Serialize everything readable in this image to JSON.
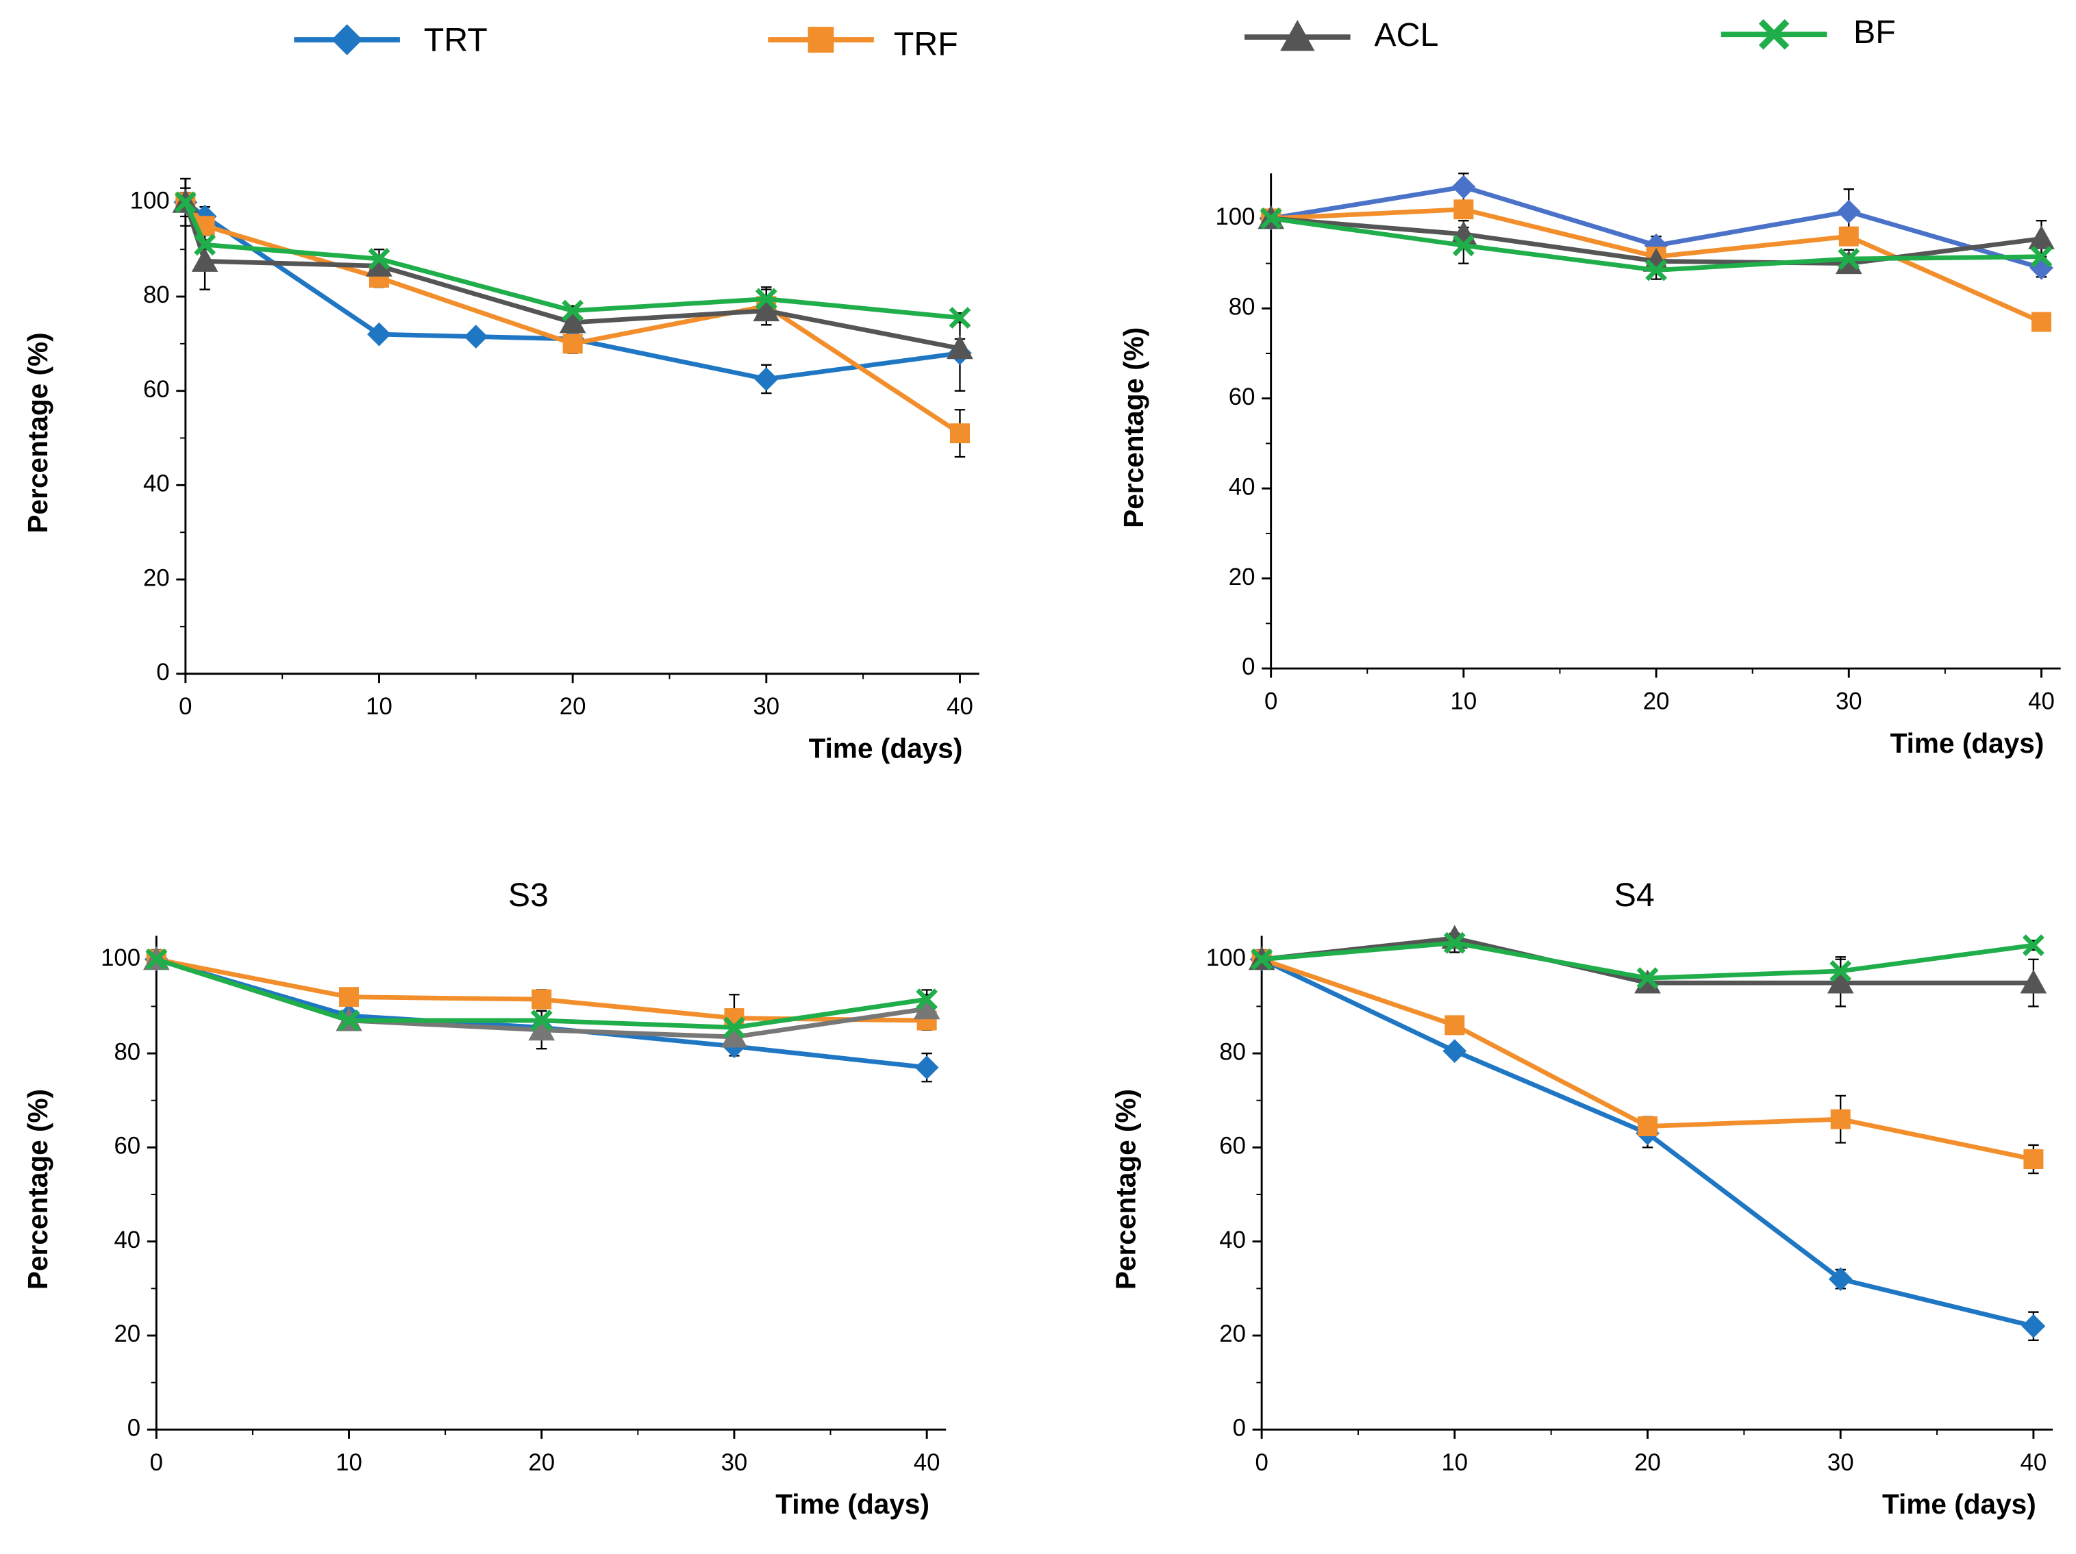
{
  "chart_data": [
    {
      "type": "line",
      "xlim": [
        0,
        41
      ],
      "ylim": [
        0,
        105
      ],
      "xticks": [
        0,
        10,
        20,
        30,
        40
      ],
      "yticks": [
        0,
        20,
        40,
        60,
        80,
        100
      ],
      "x_label": "Time (days)",
      "y_label": "Percentage (%)",
      "series": [
        {
          "name": "TRT",
          "color": "#1f77c4",
          "marker": "diamond",
          "x": [
            0,
            1,
            10,
            15,
            20,
            30,
            40
          ],
          "values": [
            100,
            97,
            72,
            71.5,
            71,
            62.5,
            68
          ],
          "errors": [
            2,
            2,
            1,
            1,
            1,
            3,
            8
          ]
        },
        {
          "name": "TRF",
          "color": "#f28e2b",
          "marker": "square",
          "x": [
            0,
            1,
            10,
            20,
            30,
            40
          ],
          "values": [
            100,
            95,
            84,
            70,
            78,
            51
          ],
          "errors": [
            3,
            2,
            2,
            2,
            4,
            5
          ]
        },
        {
          "name": "ACL",
          "color": "#555555",
          "marker": "triangle",
          "x": [
            0,
            1,
            10,
            20,
            30,
            40
          ],
          "values": [
            100,
            87.5,
            86.5,
            74.5,
            77,
            69
          ],
          "errors": [
            5,
            6,
            2,
            2,
            2,
            2
          ]
        },
        {
          "name": "BF",
          "color": "#1fae4a",
          "marker": "x",
          "x": [
            0,
            1,
            10,
            20,
            30,
            40
          ],
          "values": [
            100,
            91,
            88,
            77,
            79.5,
            75.5
          ],
          "errors": [
            2,
            1,
            2,
            1,
            2,
            1
          ]
        }
      ]
    },
    {
      "type": "line",
      "xlim": [
        0,
        41
      ],
      "ylim": [
        0,
        110
      ],
      "xticks": [
        0,
        10,
        20,
        30,
        40
      ],
      "yticks": [
        0,
        20,
        40,
        60,
        80,
        100
      ],
      "x_label": "Time (days)",
      "y_label": "Percentage (%)",
      "series": [
        {
          "color": "#4a72c8",
          "marker": "diamond",
          "x": [
            0,
            10,
            20,
            30,
            40
          ],
          "values": [
            100,
            107,
            94,
            101.5,
            89
          ],
          "errors": [
            1,
            3,
            2,
            5,
            2
          ]
        },
        {
          "color": "#f28e2b",
          "marker": "square",
          "x": [
            0,
            10,
            20,
            30,
            40
          ],
          "values": [
            100,
            102,
            91.5,
            96,
            77
          ],
          "errors": [
            1,
            2,
            2,
            2,
            1
          ]
        },
        {
          "color": "#555555",
          "marker": "triangle",
          "x": [
            0,
            10,
            20,
            30,
            40
          ],
          "values": [
            100,
            96.5,
            90.5,
            90,
            95.5
          ],
          "errors": [
            1,
            3,
            2,
            2,
            4
          ]
        },
        {
          "color": "#1fae4a",
          "marker": "x",
          "x": [
            0,
            10,
            20,
            30,
            40
          ],
          "values": [
            100,
            94,
            88.5,
            91,
            91.5
          ],
          "errors": [
            1,
            4,
            2,
            2,
            2
          ]
        }
      ]
    },
    {
      "type": "line",
      "title": "S3",
      "xlim": [
        0,
        41
      ],
      "ylim": [
        0,
        105
      ],
      "xticks": [
        0,
        10,
        20,
        30,
        40
      ],
      "yticks": [
        0,
        20,
        40,
        60,
        80,
        100
      ],
      "x_label": "Time (days)",
      "y_label": "Percentage (%)",
      "series": [
        {
          "color": "#1f77c4",
          "marker": "diamond",
          "x": [
            0,
            10,
            20,
            30,
            40
          ],
          "values": [
            100,
            88,
            85.5,
            81.5,
            77
          ],
          "errors": [
            1,
            1,
            2,
            2,
            3
          ]
        },
        {
          "color": "#f28e2b",
          "marker": "square",
          "x": [
            0,
            10,
            20,
            30,
            40
          ],
          "values": [
            100,
            92,
            91.5,
            87.5,
            87
          ],
          "errors": [
            2,
            1,
            2,
            5,
            2
          ]
        },
        {
          "color": "#777777",
          "marker": "triangle",
          "x": [
            0,
            10,
            20,
            30,
            40
          ],
          "values": [
            100,
            87,
            85,
            83.5,
            89.5
          ],
          "errors": [
            2,
            1,
            4,
            2,
            3
          ]
        },
        {
          "color": "#1fae4a",
          "marker": "x",
          "x": [
            0,
            10,
            20,
            30,
            40
          ],
          "values": [
            100,
            87,
            87,
            85.5,
            91.5
          ],
          "errors": [
            1,
            1,
            2,
            2,
            2
          ]
        }
      ]
    },
    {
      "type": "line",
      "title": "S4",
      "xlim": [
        0,
        41
      ],
      "ylim": [
        0,
        105
      ],
      "xticks": [
        0,
        10,
        20,
        30,
        40
      ],
      "yticks": [
        0,
        20,
        40,
        60,
        80,
        100
      ],
      "x_label": "Time (days)",
      "y_label": "Percentage (%)",
      "series": [
        {
          "color": "#1f77c4",
          "marker": "diamond",
          "x": [
            0,
            10,
            20,
            30,
            40
          ],
          "values": [
            100,
            80.5,
            63,
            32,
            22
          ],
          "errors": [
            1,
            1,
            3,
            2,
            3
          ]
        },
        {
          "color": "#f28e2b",
          "marker": "square",
          "x": [
            0,
            10,
            20,
            30,
            40
          ],
          "values": [
            100,
            86,
            64.5,
            66,
            57.5
          ],
          "errors": [
            2,
            1,
            2,
            5,
            3
          ]
        },
        {
          "color": "#555555",
          "marker": "triangle",
          "x": [
            0,
            10,
            20,
            30,
            40
          ],
          "values": [
            100,
            104.5,
            95,
            95,
            95
          ],
          "errors": [
            1,
            1,
            1,
            5,
            5
          ]
        },
        {
          "color": "#1fae4a",
          "marker": "x",
          "x": [
            0,
            10,
            20,
            30,
            40
          ],
          "values": [
            100,
            103.5,
            96,
            97.5,
            103
          ],
          "errors": [
            1,
            2,
            1,
            3,
            1
          ]
        }
      ]
    }
  ]
}
